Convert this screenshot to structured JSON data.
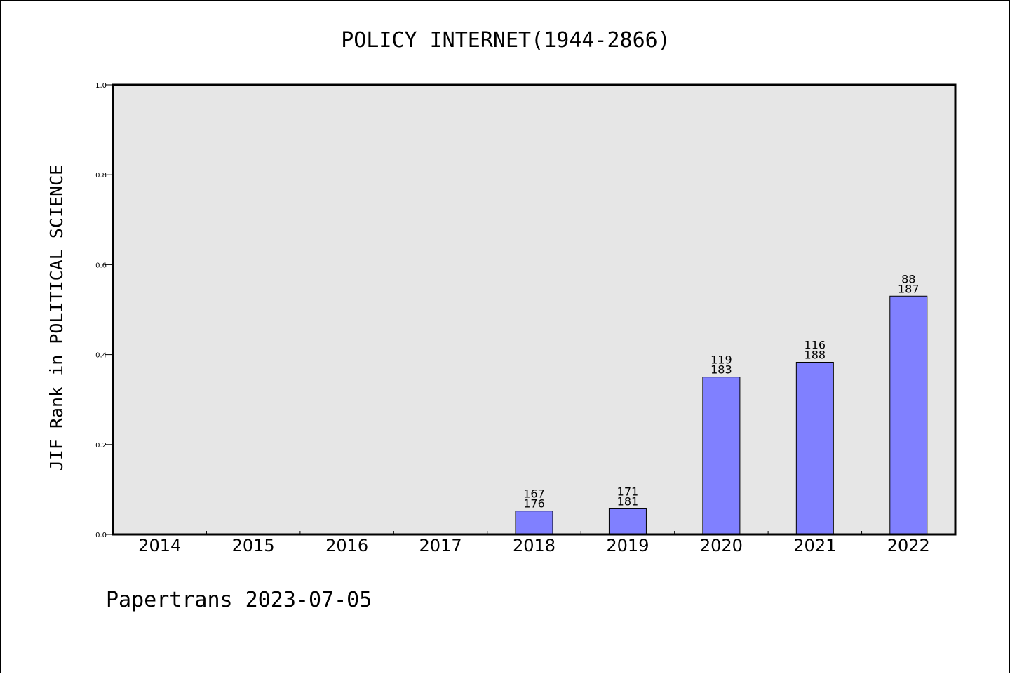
{
  "chart_data": {
    "type": "bar",
    "title": "POLICY INTERNET(1944-2866)",
    "ylabel": "JIF Rank in POLITICAL SCIENCE",
    "xlabel": "",
    "ylim": [
      0,
      1.0
    ],
    "yticks": [
      "0.0",
      "0.2",
      "0.4",
      "0.6",
      "0.8",
      "1.0"
    ],
    "categories": [
      "2014",
      "2015",
      "2016",
      "2017",
      "2018",
      "2019",
      "2020",
      "2021",
      "2022"
    ],
    "values": [
      null,
      null,
      null,
      null,
      0.052,
      0.057,
      0.35,
      0.383,
      0.53
    ],
    "rank": [
      null,
      null,
      null,
      null,
      "167",
      "171",
      "119",
      "116",
      "88"
    ],
    "total": [
      null,
      null,
      null,
      null,
      "176",
      "181",
      "183",
      "188",
      "187"
    ],
    "grid": false,
    "bar_color": "#8080ff",
    "background_color": "#e6e6e6"
  },
  "footer": {
    "text": "Papertrans 2023-07-05"
  }
}
